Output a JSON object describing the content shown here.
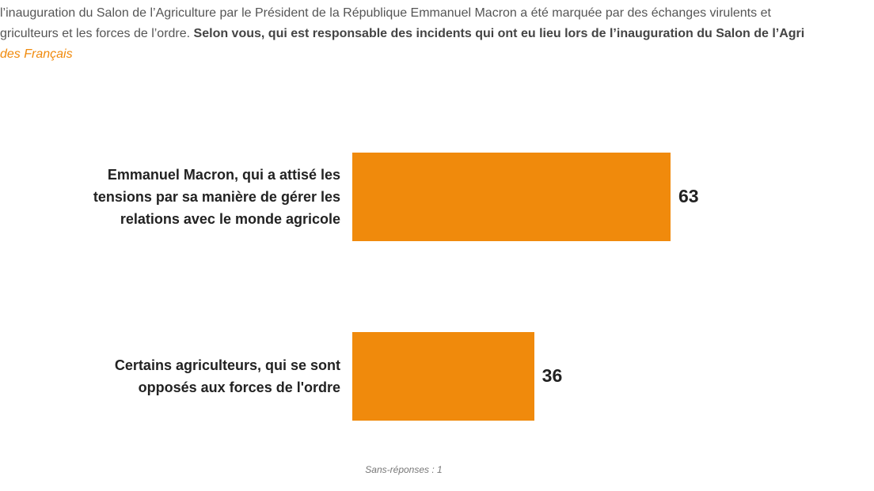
{
  "chart_data": {
    "type": "bar",
    "intro": [
      "l’inauguration du Salon de l’Agriculture par le Président de la République Emmanuel Macron a été marquée par des échanges virulents et",
      "griculteurs et les forces de l’ordre. "
    ],
    "question": "Selon vous, qui est responsable des incidents qui ont eu lieu lors de l’inauguration du Salon de l’Agri",
    "subtitle": "des Français",
    "categories": [
      "Emmanuel Macron, qui a attisé les\ntensions par sa manière de gérer les\nrelations avec le monde agricole",
      "Certains agriculteurs, qui se sont\nopposés aux forces de l'ordre"
    ],
    "values": [
      63,
      36
    ],
    "color": "#f08a0c",
    "note": "Sans-réponses : 1"
  }
}
